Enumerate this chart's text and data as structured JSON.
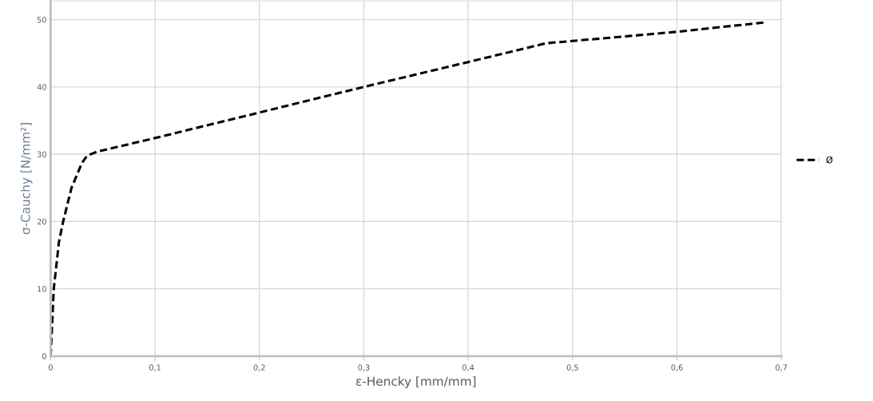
{
  "chart_data": {
    "type": "line",
    "xlabel": "ε-Hencky [mm/mm]",
    "ylabel": "σ-Cauchy [N/mm²]",
    "series": [
      {
        "name": "Ø",
        "color": "#000000",
        "x": [
          0,
          0.003,
          0.008,
          0.012,
          0.02,
          0.03,
          0.035,
          0.045,
          0.1,
          0.2,
          0.3,
          0.4,
          0.475,
          0.55,
          0.6,
          0.685
        ],
        "values": [
          0,
          10,
          17,
          20,
          25,
          28.7,
          29.8,
          30.4,
          32.4,
          36.2,
          40,
          43.7,
          46.5,
          47.5,
          48.2,
          49.6
        ]
      }
    ],
    "xlim": [
      0,
      0.7
    ],
    "xticks": [
      0,
      {
        "value": 0.1,
        "label": "0,1"
      },
      {
        "value": 0.2,
        "label": "0,2"
      },
      {
        "value": 0.3,
        "label": "0,3"
      },
      {
        "value": 0.4,
        "label": "0,4"
      },
      {
        "value": 0.5,
        "label": "0,5"
      },
      {
        "value": 0.6,
        "label": "0,6"
      },
      {
        "value": 0.7,
        "label": "0,7"
      }
    ],
    "ylim": [
      0,
      52.8
    ],
    "yticks": [
      0,
      10,
      20,
      30,
      40,
      50
    ],
    "grid": true,
    "legend": "right",
    "marker": "none",
    "line_style": "dashed"
  }
}
